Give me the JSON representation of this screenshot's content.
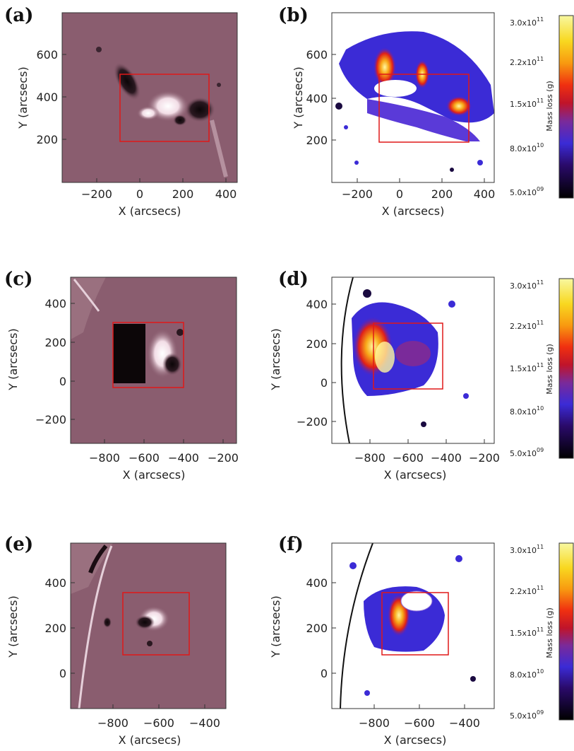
{
  "rows": [
    {
      "left": {
        "label": "(a)",
        "xlabel": "X (arcsecs)",
        "ylabel": "Y (arcsecs)",
        "xticks": [
          "−200",
          "0",
          "200",
          "400"
        ],
        "yticks": [
          "600",
          "400",
          "200"
        ]
      },
      "right": {
        "label": "(b)",
        "xlabel": "X (arcsecs)",
        "ylabel": "Y (arcsecs)",
        "xticks": [
          "−200",
          "0",
          "200",
          "400"
        ],
        "yticks": [
          "600",
          "400",
          "200"
        ]
      },
      "colorbar": {
        "label": "Mass loss (g)",
        "ticks": [
          "3.0x10",
          "2.2x10",
          "1.5x10",
          "8.0x10",
          "5.0x10"
        ],
        "exps": [
          "11",
          "11",
          "11",
          "10",
          "09"
        ]
      }
    },
    {
      "left": {
        "label": "(c)",
        "xlabel": "X (arcsecs)",
        "ylabel": "Y (arcsecs)",
        "xticks": [
          "−800",
          "−600",
          "−400",
          "−200"
        ],
        "yticks": [
          "400",
          "200",
          "0",
          "−200"
        ]
      },
      "right": {
        "label": "(d)",
        "xlabel": "X (arcsecs)",
        "ylabel": "Y (arcsecs)",
        "xticks": [
          "−800",
          "−600",
          "−400",
          "−200"
        ],
        "yticks": [
          "400",
          "200",
          "0",
          "−200"
        ]
      },
      "colorbar": {
        "label": "Mass loss (g)",
        "ticks": [
          "3.0x10",
          "2.2x10",
          "1.5x10",
          "8.0x10",
          "5.0x10"
        ],
        "exps": [
          "11",
          "11",
          "11",
          "10",
          "09"
        ]
      }
    },
    {
      "left": {
        "label": "(e)",
        "xlabel": "X (arcsecs)",
        "ylabel": "Y (arcsecs)",
        "xticks": [
          "−800",
          "−600",
          "−400"
        ],
        "yticks": [
          "400",
          "200",
          "0"
        ]
      },
      "right": {
        "label": "(f)",
        "xlabel": "X (arcsecs)",
        "ylabel": "Y (arcsecs)",
        "xticks": [
          "−800",
          "−600",
          "−400"
        ],
        "yticks": [
          "400",
          "200",
          "0"
        ]
      },
      "colorbar": {
        "label": "Mass loss (g)",
        "ticks": [
          "3.0x10",
          "2.2x10",
          "1.5x10",
          "8.0x10",
          "5.0x10"
        ],
        "exps": [
          "11",
          "11",
          "11",
          "10",
          "09"
        ]
      }
    }
  ]
}
